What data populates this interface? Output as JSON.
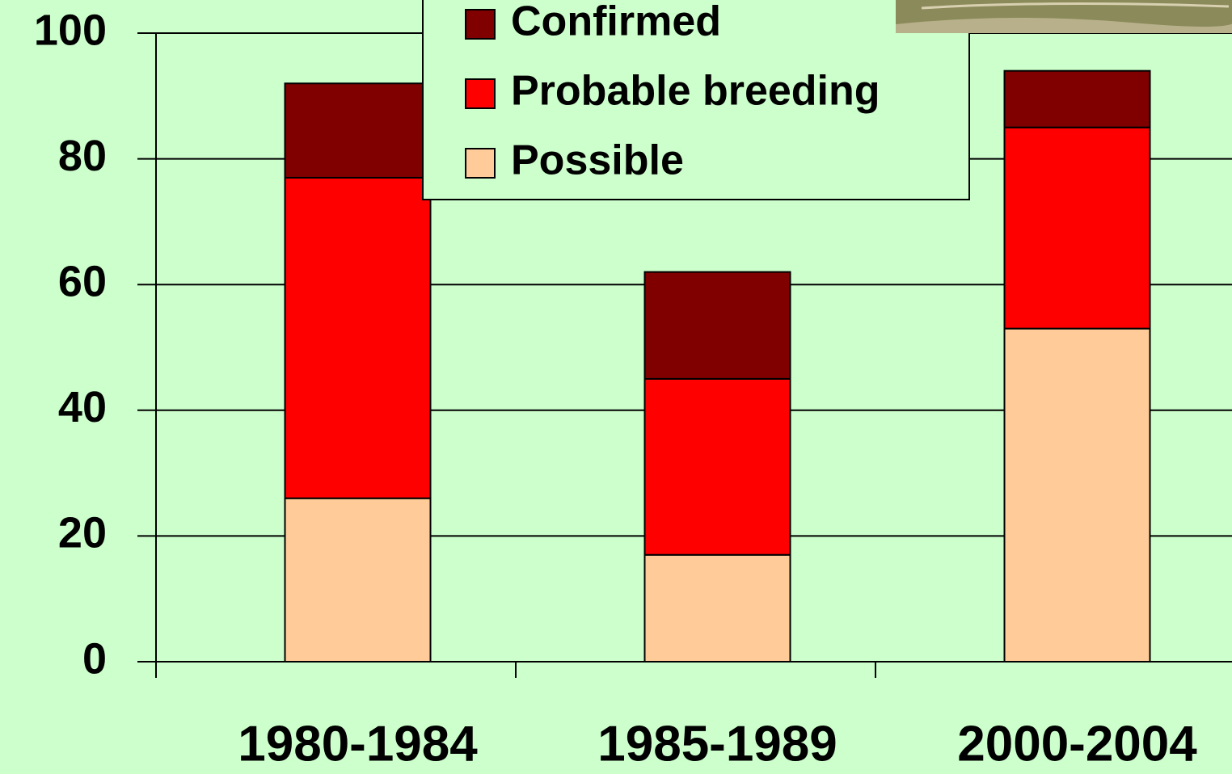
{
  "chart_data": {
    "type": "stacked_bar",
    "categories": [
      "1980-1984",
      "1985-1989",
      "2000-2004"
    ],
    "series": [
      {
        "name": "Possible",
        "color": "#ffcc99",
        "values": [
          26,
          17,
          53
        ]
      },
      {
        "name": "Probable breeding",
        "color": "#ff0000",
        "values": [
          51,
          28,
          32
        ]
      },
      {
        "name": "Confirmed",
        "color": "#800000",
        "values": [
          15,
          17,
          9
        ]
      }
    ],
    "ylim": [
      0,
      100
    ],
    "yticks": [
      0,
      20,
      40,
      60,
      80,
      100
    ],
    "grid": true
  }
}
